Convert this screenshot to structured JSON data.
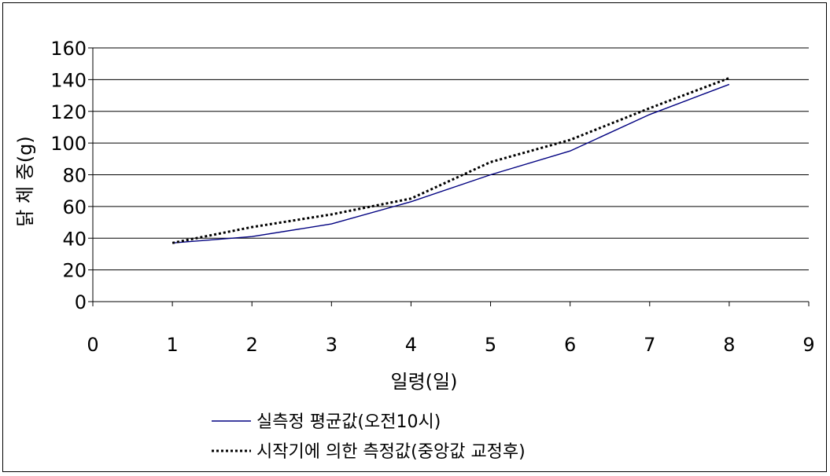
{
  "chart_data": {
    "type": "line",
    "x": [
      1,
      2,
      3,
      4,
      5,
      6,
      7,
      8
    ],
    "xlim": [
      0,
      9
    ],
    "ylim": [
      0,
      160
    ],
    "x_ticks": [
      0,
      1,
      2,
      3,
      4,
      5,
      6,
      7,
      8,
      9
    ],
    "y_ticks": [
      0,
      20,
      40,
      60,
      80,
      100,
      120,
      140,
      160
    ],
    "xlabel": "일령(일)",
    "ylabel": "닭 체 중(g)",
    "grid": "horizontal",
    "legend_position": "bottom",
    "series": [
      {
        "name": "실측정 평균값(오전10시)",
        "values": [
          37,
          41,
          49,
          63,
          80,
          95,
          118,
          137
        ],
        "color": "#000080",
        "style": "solid"
      },
      {
        "name": "시작기에 의한 측정값(중앙값 교정후)",
        "values": [
          37,
          47,
          55,
          65,
          88,
          102,
          122,
          141
        ],
        "color": "#000000",
        "style": "dotted"
      }
    ]
  }
}
